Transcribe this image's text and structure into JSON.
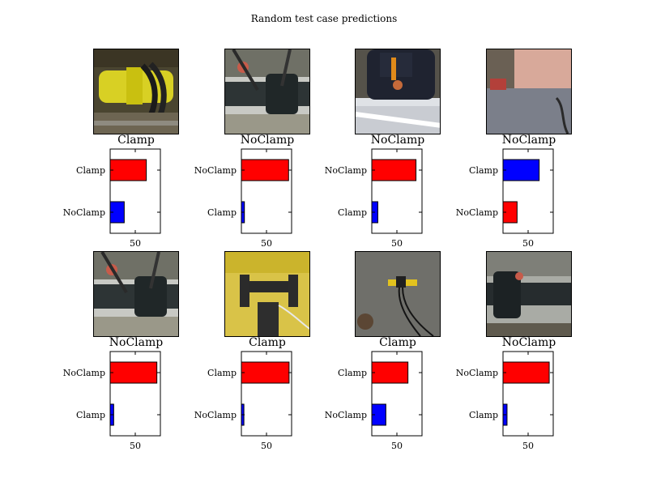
{
  "figure": {
    "title": "Random test case predictions"
  },
  "chart_data": [
    {
      "type": "bar",
      "orientation": "horizontal",
      "image_label": "Clamp",
      "categories": [
        "Clamp",
        "NoClamp"
      ],
      "values": [
        72,
        28
      ],
      "colors": [
        "#ff0000",
        "#0000ff"
      ],
      "xticks": [
        50
      ],
      "xlim": [
        0,
        100
      ],
      "image_scene": "yellow-clamp"
    },
    {
      "type": "bar",
      "orientation": "horizontal",
      "image_label": "NoClamp",
      "categories": [
        "NoClamp",
        "Clamp"
      ],
      "values": [
        94,
        6
      ],
      "colors": [
        "#ff0000",
        "#0000ff"
      ],
      "xticks": [
        50
      ],
      "xlim": [
        0,
        100
      ],
      "image_scene": "pipe-joint-machine"
    },
    {
      "type": "bar",
      "orientation": "horizontal",
      "image_label": "NoClamp",
      "categories": [
        "NoClamp",
        "Clamp"
      ],
      "values": [
        88,
        12
      ],
      "colors": [
        "#ff0000",
        "#0000ff"
      ],
      "xticks": [
        50
      ],
      "xlim": [
        0,
        100
      ],
      "image_scene": "black-pipe-fitting"
    },
    {
      "type": "bar",
      "orientation": "horizontal",
      "image_label": "NoClamp",
      "categories": [
        "Clamp",
        "NoClamp"
      ],
      "values": [
        72,
        28
      ],
      "colors": [
        "#0000ff",
        "#ff0000"
      ],
      "xticks": [
        50
      ],
      "xlim": [
        0,
        100
      ],
      "image_scene": "office-floor"
    },
    {
      "type": "bar",
      "orientation": "horizontal",
      "image_label": "NoClamp",
      "categories": [
        "NoClamp",
        "Clamp"
      ],
      "values": [
        93,
        7
      ],
      "colors": [
        "#ff0000",
        "#0000ff"
      ],
      "xticks": [
        50
      ],
      "xlim": [
        0,
        100
      ],
      "image_scene": "pipe-joint-machine"
    },
    {
      "type": "bar",
      "orientation": "horizontal",
      "image_label": "Clamp",
      "categories": [
        "Clamp",
        "NoClamp"
      ],
      "values": [
        95,
        5
      ],
      "colors": [
        "#ff0000",
        "#0000ff"
      ],
      "xticks": [
        50
      ],
      "xlim": [
        0,
        100
      ],
      "image_scene": "yellow-tarp-machine"
    },
    {
      "type": "bar",
      "orientation": "horizontal",
      "image_label": "Clamp",
      "categories": [
        "Clamp",
        "NoClamp"
      ],
      "values": [
        72,
        28
      ],
      "colors": [
        "#ff0000",
        "#0000ff"
      ],
      "xticks": [
        50
      ],
      "xlim": [
        0,
        100
      ],
      "image_scene": "clamp-on-floor"
    },
    {
      "type": "bar",
      "orientation": "horizontal",
      "image_label": "NoClamp",
      "categories": [
        "NoClamp",
        "Clamp"
      ],
      "values": [
        92,
        8
      ],
      "colors": [
        "#ff0000",
        "#0000ff"
      ],
      "xticks": [
        50
      ],
      "xlim": [
        0,
        100
      ],
      "image_scene": "pipe-fitting-grey"
    }
  ]
}
